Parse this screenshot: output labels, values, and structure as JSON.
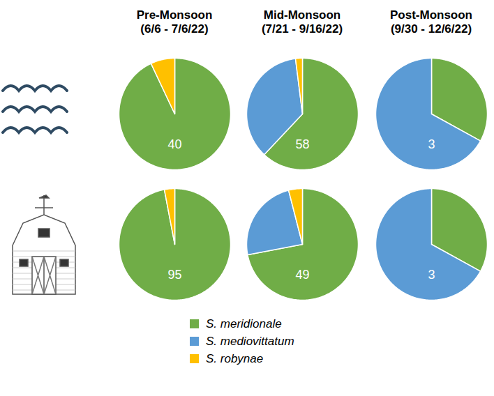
{
  "chart_data": {
    "type": "pie",
    "legend": "bottom",
    "data_labels": false,
    "series": [
      {
        "name": "S. meridionale",
        "color": "#70ad47"
      },
      {
        "name": "S. mediovittatum",
        "color": "#5b9bd5"
      },
      {
        "name": "S. robynae",
        "color": "#ffc000"
      }
    ],
    "periods": [
      {
        "title": "Pre-Monsoon",
        "dates": "(6/6 - 7/6/22)"
      },
      {
        "title": "Mid-Monsoon",
        "dates": "(7/21 - 9/16/22)"
      },
      {
        "title": "Post-Monsoon",
        "dates": "(9/30 - 12/6/22)"
      }
    ],
    "rows": [
      [
        {
          "values": [
            93,
            0,
            7
          ],
          "n": 40
        },
        {
          "values": [
            62,
            36,
            2
          ],
          "n": 58
        },
        {
          "values": [
            33,
            67,
            0
          ],
          "n": 3
        }
      ],
      [
        {
          "values": [
            97,
            0,
            3
          ],
          "n": 95
        },
        {
          "values": [
            72,
            24,
            4
          ],
          "n": 49
        },
        {
          "values": [
            33,
            67,
            0
          ],
          "n": 3
        }
      ]
    ]
  }
}
